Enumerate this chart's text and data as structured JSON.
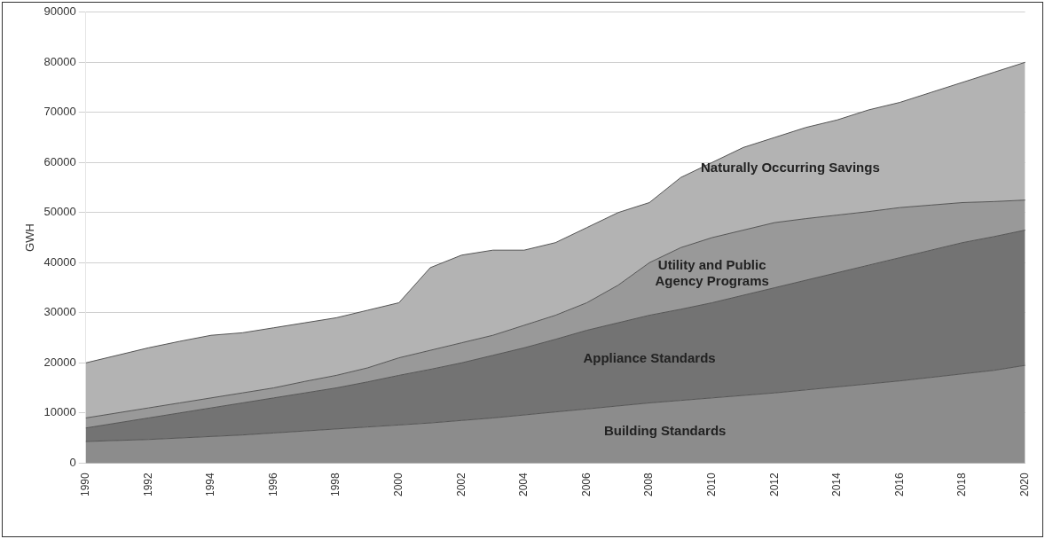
{
  "chart_data": {
    "type": "area",
    "stacked": true,
    "ylabel": "GWH",
    "categories": [
      "1990",
      null,
      "1992",
      null,
      "1994",
      null,
      "1996",
      null,
      "1998",
      null,
      "2000",
      null,
      "2002",
      null,
      "2004",
      null,
      "2006",
      null,
      "2008",
      null,
      "2010",
      null,
      "2012",
      null,
      "2014",
      null,
      "2016",
      null,
      "2018",
      null,
      "2020"
    ],
    "series": [
      {
        "name": "Building Standards",
        "color": "#8c8c8c",
        "values": [
          4300,
          4500,
          4700,
          5000,
          5300,
          5600,
          6000,
          6400,
          6800,
          7200,
          7600,
          8000,
          8500,
          9000,
          9600,
          10200,
          10800,
          11400,
          12000,
          12500,
          13000,
          13500,
          14000,
          14600,
          15200,
          15800,
          16400,
          17100,
          17800,
          18500,
          19500
        ]
      },
      {
        "name": "Appliance Standards",
        "color": "#737373",
        "values": [
          2700,
          3500,
          4300,
          5000,
          5700,
          6400,
          7000,
          7600,
          8200,
          9000,
          9900,
          10700,
          11500,
          12500,
          13400,
          14500,
          15700,
          16600,
          17500,
          18200,
          19000,
          20000,
          21000,
          21900,
          22800,
          23700,
          24600,
          25400,
          26200,
          26700,
          27000
        ]
      },
      {
        "name": "Utility and Public Agency Programs",
        "color": "#999999",
        "values": [
          2000,
          2000,
          2000,
          2000,
          2000,
          2000,
          2000,
          2300,
          2500,
          2800,
          3500,
          3800,
          4000,
          4000,
          4500,
          4800,
          5500,
          7500,
          10500,
          12300,
          13000,
          13000,
          13000,
          12300,
          11500,
          10700,
          10000,
          9000,
          8000,
          7000,
          6000
        ]
      },
      {
        "name": "Naturally Occurring Savings",
        "color": "#b3b3b3",
        "values": [
          11000,
          11500,
          12000,
          12300,
          12500,
          12000,
          12000,
          11700,
          11500,
          11500,
          11000,
          16500,
          17500,
          17000,
          15000,
          14500,
          15000,
          14500,
          12000,
          14000,
          15000,
          16500,
          17000,
          18200,
          19000,
          20300,
          21000,
          22500,
          24000,
          25800,
          27500
        ]
      }
    ],
    "ylim": [
      0,
      90000
    ],
    "yticks": [
      0,
      10000,
      20000,
      30000,
      40000,
      50000,
      60000,
      70000,
      80000,
      90000
    ],
    "grid": "y",
    "legend": false
  }
}
